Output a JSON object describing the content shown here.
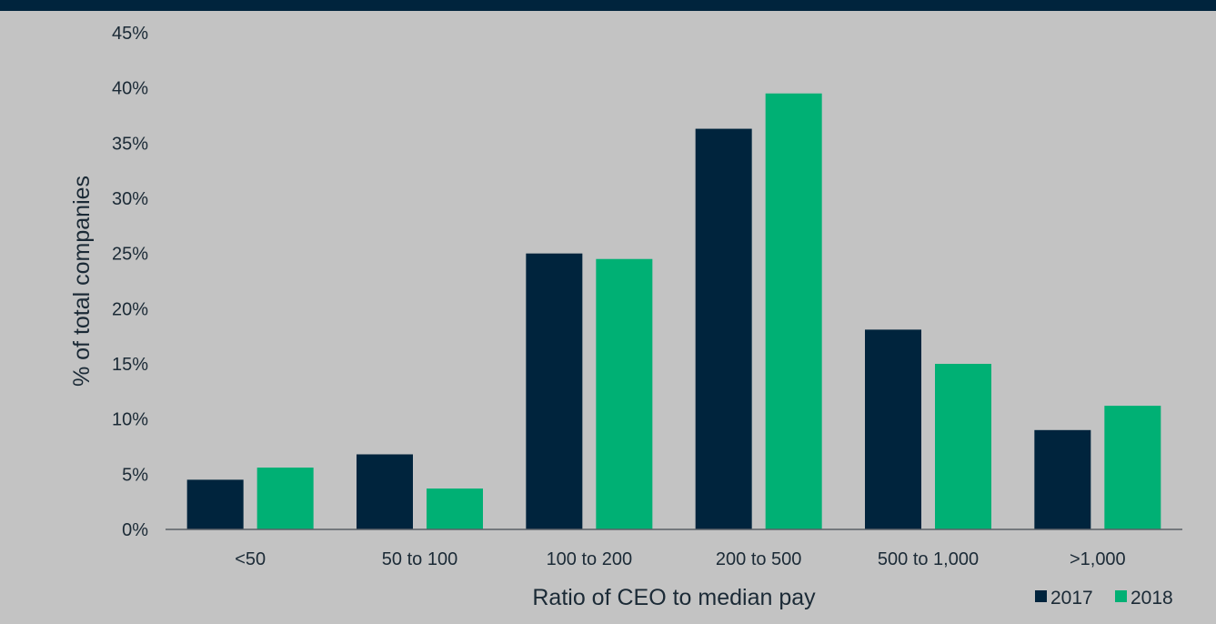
{
  "chart_data": {
    "type": "bar",
    "categories": [
      "<50",
      "50 to 100",
      "100 to 200",
      "200 to 500",
      "500 to 1,000",
      ">1,000"
    ],
    "series": [
      {
        "name": "2017",
        "values": [
          4.5,
          6.8,
          25.0,
          36.3,
          18.1,
          9.0
        ],
        "color": "#00243d"
      },
      {
        "name": "2018",
        "values": [
          5.6,
          3.7,
          24.5,
          39.5,
          15.0,
          11.2
        ],
        "color": "#00b074"
      }
    ],
    "xlabel": "Ratio of CEO to median pay",
    "ylabel": "% of total companies",
    "ylim": [
      0,
      45
    ],
    "yticks": [
      0,
      5,
      10,
      15,
      20,
      25,
      30,
      35,
      40,
      45
    ],
    "ytick_labels": [
      "0%",
      "5%",
      "10%",
      "15%",
      "20%",
      "25%",
      "30%",
      "35%",
      "40%",
      "45%"
    ],
    "grid": false,
    "legend_position": "bottom-right"
  },
  "colors": {
    "background": "#c3c3c3",
    "top_band": "#00243d",
    "text": "#1b2a36",
    "axis": "#5a6066"
  }
}
